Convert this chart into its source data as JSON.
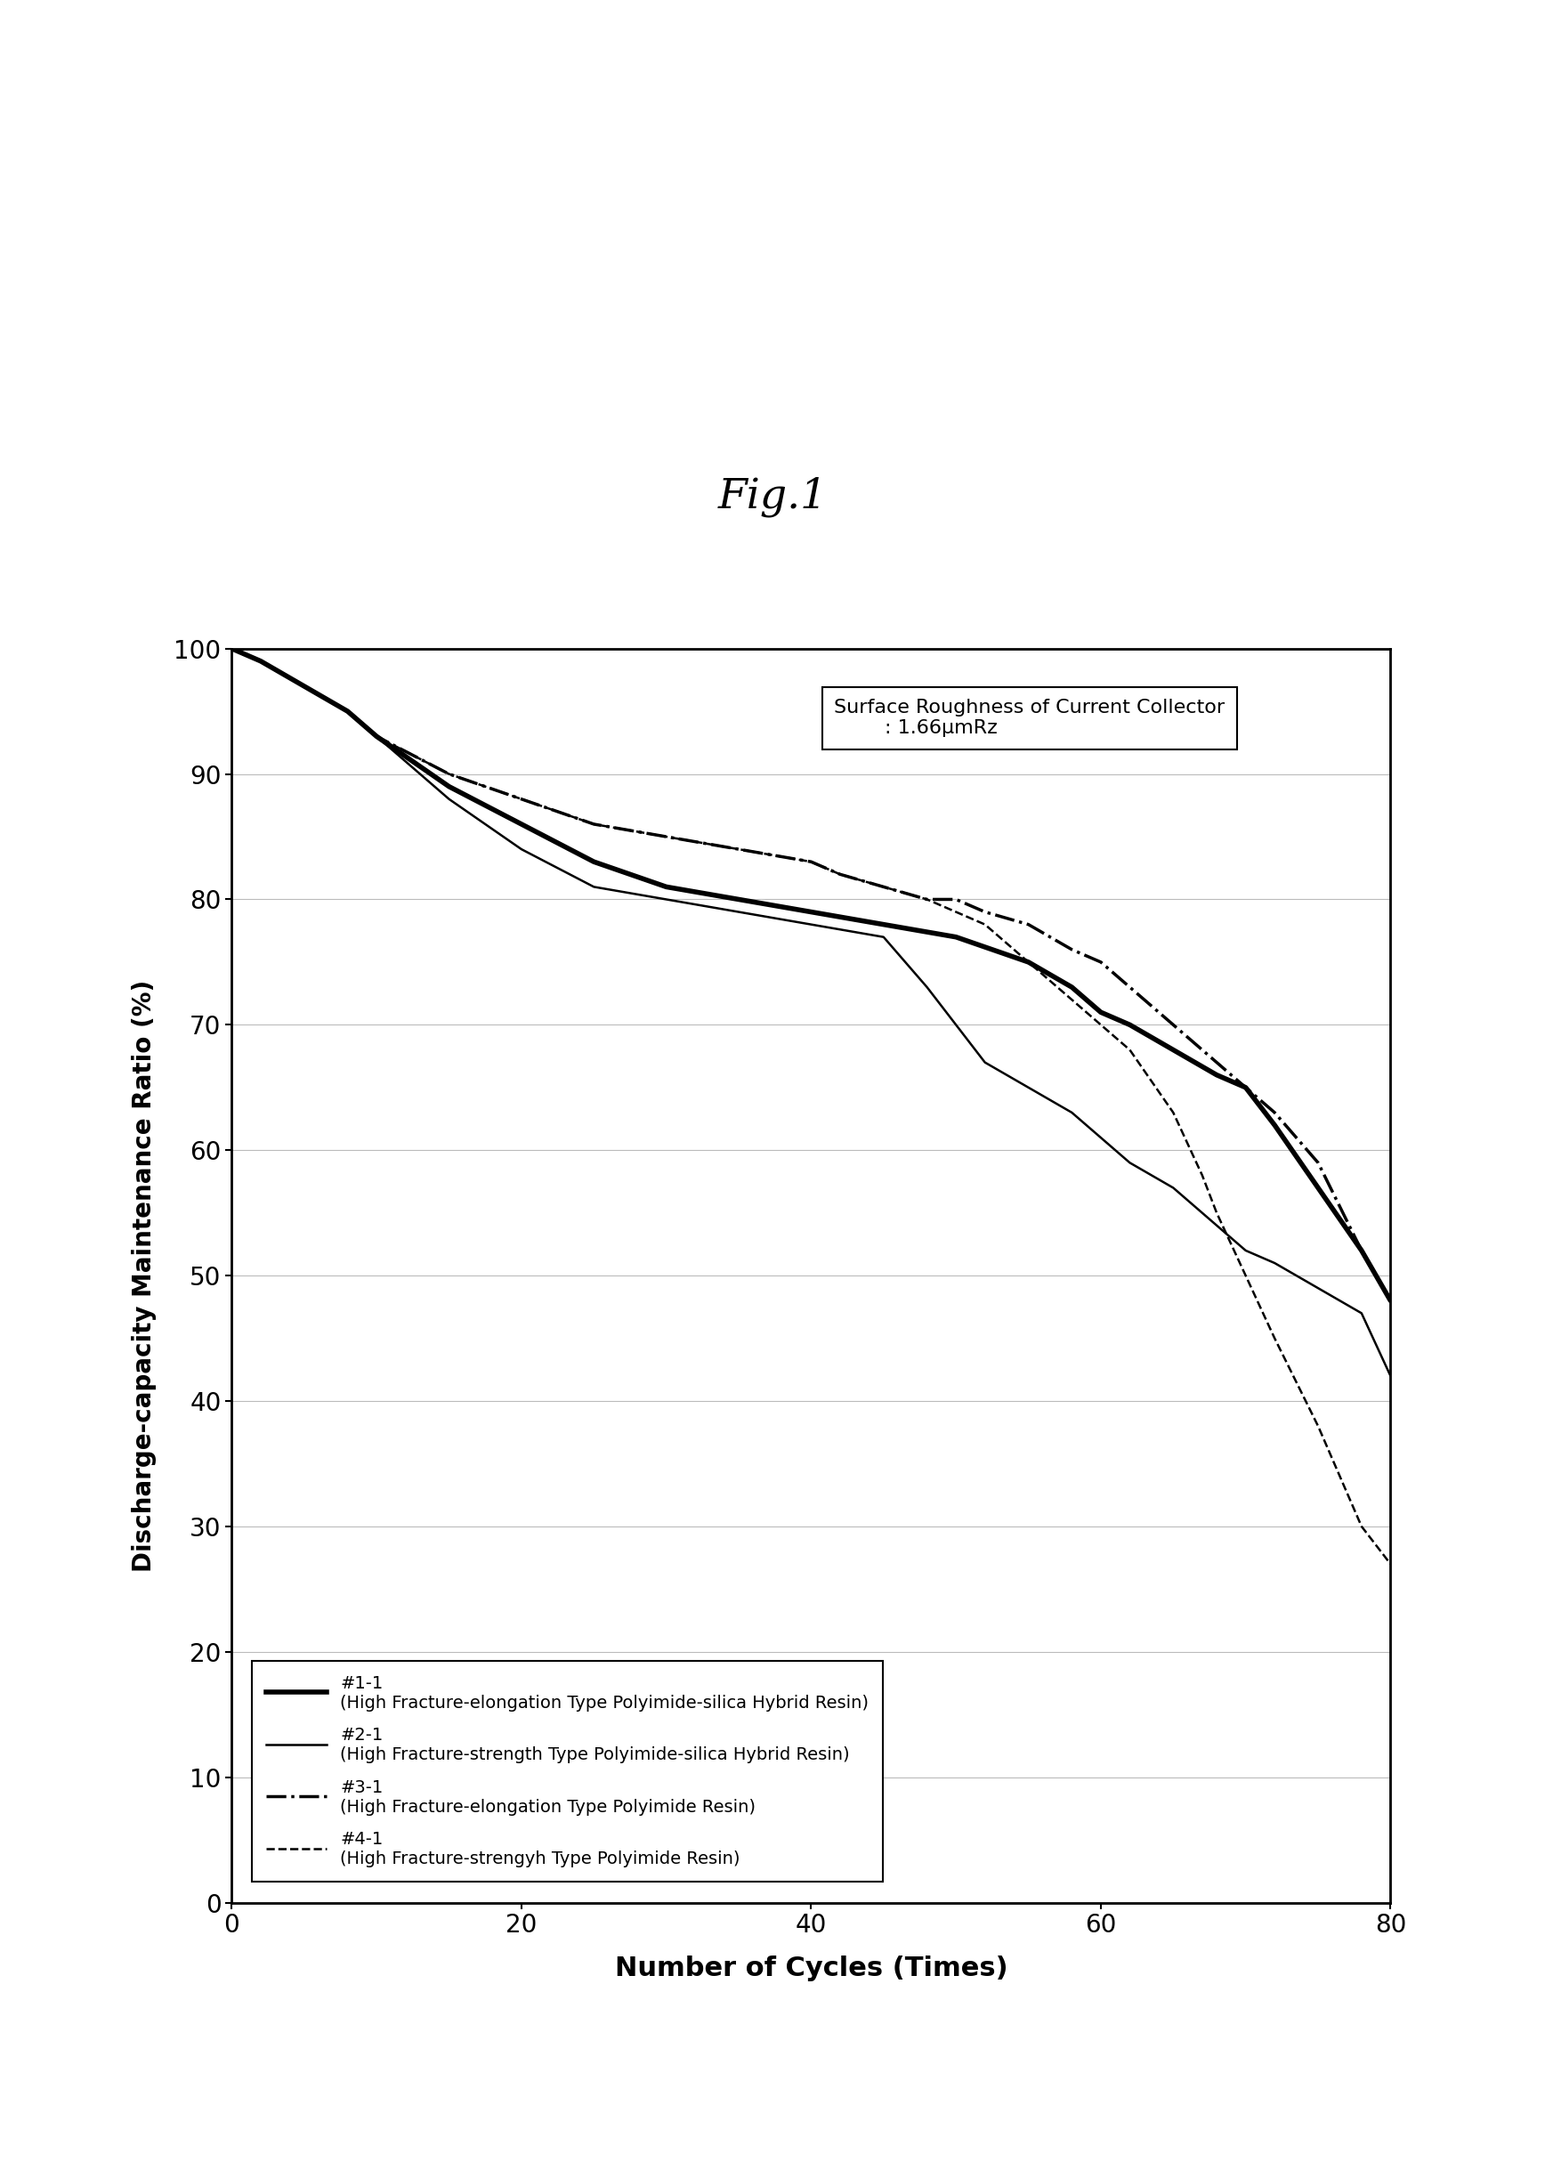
{
  "title": "Fig.1",
  "xlabel": "Number of Cycles (Times)",
  "ylabel": "Discharge-capacity Maintenance Ratio (%)",
  "xlim": [
    0,
    80
  ],
  "ylim": [
    0,
    100
  ],
  "xticks": [
    0,
    20,
    40,
    60,
    80
  ],
  "yticks": [
    0,
    10,
    20,
    30,
    40,
    50,
    60,
    70,
    80,
    90,
    100
  ],
  "annotation_line1": "Surface Roughness of Current Collector",
  "annotation_line2": "        : 1.66μmRz",
  "series": [
    {
      "label_line1": "#1-1",
      "label_line2": "(High Fracture-elongation Type Polyimide-silica Hybrid Resin)",
      "color": "#000000",
      "linewidth": 4.0,
      "linestyle": "solid",
      "x": [
        0,
        2,
        5,
        8,
        10,
        15,
        20,
        25,
        30,
        35,
        40,
        45,
        50,
        55,
        58,
        60,
        62,
        65,
        68,
        70,
        72,
        75,
        78,
        80
      ],
      "y": [
        100,
        99,
        97,
        95,
        93,
        89,
        86,
        83,
        81,
        80,
        79,
        78,
        77,
        75,
        73,
        71,
        70,
        68,
        66,
        65,
        62,
        57,
        52,
        48
      ]
    },
    {
      "label_line1": "#2-1",
      "label_line2": "(High Fracture-strength Type Polyimide-silica Hybrid Resin)",
      "color": "#000000",
      "linewidth": 1.8,
      "linestyle": "solid",
      "x": [
        0,
        2,
        5,
        8,
        10,
        15,
        20,
        25,
        30,
        35,
        40,
        45,
        48,
        50,
        52,
        55,
        58,
        60,
        62,
        65,
        68,
        70,
        72,
        75,
        78,
        80
      ],
      "y": [
        100,
        99,
        97,
        95,
        93,
        88,
        84,
        81,
        80,
        79,
        78,
        77,
        73,
        70,
        67,
        65,
        63,
        61,
        59,
        57,
        54,
        52,
        51,
        49,
        47,
        42
      ]
    },
    {
      "label_line1": "#3-1",
      "label_line2": "(High Fracture-elongation Type Polyimide Resin)",
      "color": "#000000",
      "linewidth": 2.5,
      "linestyle": "dashdot",
      "x": [
        0,
        2,
        5,
        8,
        10,
        15,
        20,
        25,
        30,
        35,
        40,
        42,
        45,
        48,
        50,
        52,
        55,
        58,
        60,
        62,
        65,
        68,
        70,
        72,
        75,
        78,
        80
      ],
      "y": [
        100,
        99,
        97,
        95,
        93,
        90,
        88,
        86,
        85,
        84,
        83,
        82,
        81,
        80,
        80,
        79,
        78,
        76,
        75,
        73,
        70,
        67,
        65,
        63,
        59,
        52,
        48
      ]
    },
    {
      "label_line1": "#4-1",
      "label_line2": "(High Fracture-strengyh Type Polyimide Resin)",
      "color": "#000000",
      "linewidth": 1.8,
      "linestyle": "dashed",
      "x": [
        0,
        2,
        5,
        8,
        10,
        15,
        20,
        25,
        30,
        35,
        40,
        42,
        45,
        48,
        50,
        52,
        55,
        58,
        60,
        62,
        65,
        67,
        68,
        70,
        72,
        75,
        78,
        80
      ],
      "y": [
        100,
        99,
        97,
        95,
        93,
        90,
        88,
        86,
        85,
        84,
        83,
        82,
        81,
        80,
        79,
        78,
        75,
        72,
        70,
        68,
        63,
        58,
        55,
        50,
        45,
        38,
        30,
        27
      ]
    }
  ]
}
